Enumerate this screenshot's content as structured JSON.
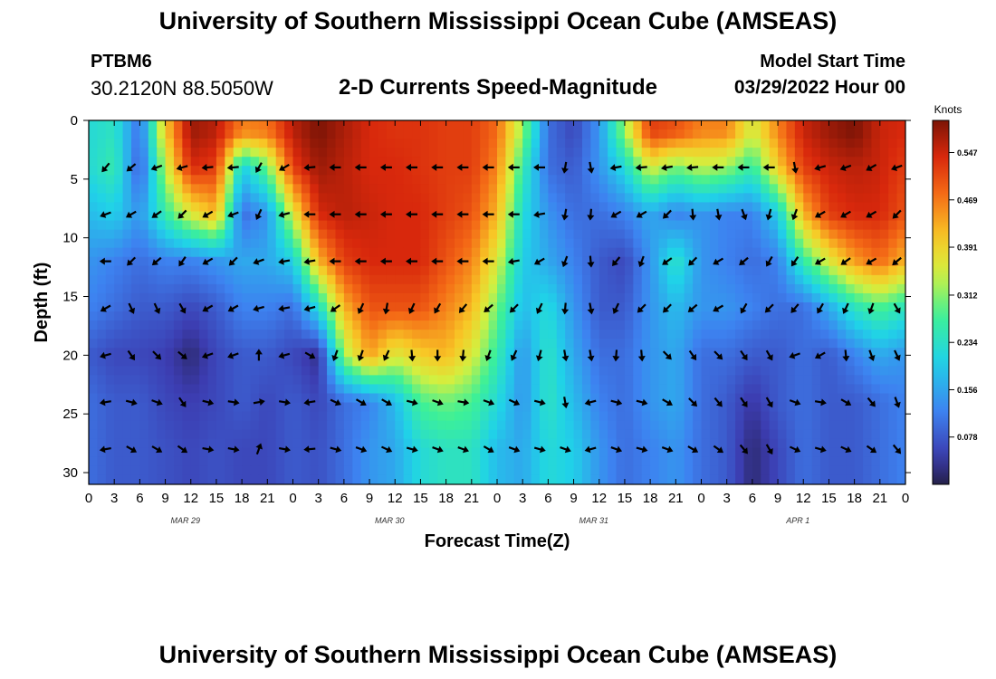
{
  "page": {
    "title_top": "University of Southern Mississippi Ocean Cube (AMSEAS)",
    "title_bottom": "University of Southern Mississippi Ocean Cube (AMSEAS)",
    "station_id": "PTBM6",
    "station_coords": "30.2120N  88.5050W",
    "model_start_label": "Model Start Time",
    "model_start_value": "03/29/2022 Hour 00"
  },
  "chart_data": {
    "type": "heatmap",
    "title": "2-D Currents Speed-Magnitude",
    "xlabel": "Forecast Time(Z)",
    "ylabel": "Depth (ft)",
    "x_range_hours": [
      0,
      96
    ],
    "y_range_ft": [
      0,
      31
    ],
    "x_ticks": [
      {
        "hour": 0,
        "label": "0"
      },
      {
        "hour": 3,
        "label": "3"
      },
      {
        "hour": 6,
        "label": "6"
      },
      {
        "hour": 9,
        "label": "9"
      },
      {
        "hour": 12,
        "label": "12"
      },
      {
        "hour": 15,
        "label": "15"
      },
      {
        "hour": 18,
        "label": "18"
      },
      {
        "hour": 21,
        "label": "21"
      },
      {
        "hour": 24,
        "label": "0"
      },
      {
        "hour": 27,
        "label": "3"
      },
      {
        "hour": 30,
        "label": "6"
      },
      {
        "hour": 33,
        "label": "9"
      },
      {
        "hour": 36,
        "label": "12"
      },
      {
        "hour": 39,
        "label": "15"
      },
      {
        "hour": 42,
        "label": "18"
      },
      {
        "hour": 45,
        "label": "21"
      },
      {
        "hour": 48,
        "label": "0"
      },
      {
        "hour": 51,
        "label": "3"
      },
      {
        "hour": 54,
        "label": "6"
      },
      {
        "hour": 57,
        "label": "9"
      },
      {
        "hour": 60,
        "label": "12"
      },
      {
        "hour": 63,
        "label": "15"
      },
      {
        "hour": 66,
        "label": "18"
      },
      {
        "hour": 69,
        "label": "21"
      },
      {
        "hour": 72,
        "label": "0"
      },
      {
        "hour": 75,
        "label": "3"
      },
      {
        "hour": 78,
        "label": "6"
      },
      {
        "hour": 81,
        "label": "9"
      },
      {
        "hour": 84,
        "label": "12"
      },
      {
        "hour": 87,
        "label": "15"
      },
      {
        "hour": 90,
        "label": "18"
      },
      {
        "hour": 93,
        "label": "21"
      },
      {
        "hour": 96,
        "label": "0"
      }
    ],
    "y_ticks": [
      0,
      5,
      10,
      15,
      20,
      25,
      30
    ],
    "date_labels": [
      {
        "hour": 12,
        "label": "MAR 29"
      },
      {
        "hour": 36,
        "label": "MAR 30"
      },
      {
        "hour": 60,
        "label": "MAR 31"
      },
      {
        "hour": 84,
        "label": "APR 1"
      }
    ],
    "colorbar": {
      "title": "Knots",
      "min": 0.0,
      "max": 0.6,
      "ticks": [
        "0.078",
        "0.156",
        "0.234",
        "0.312",
        "0.391",
        "0.469",
        "0.547"
      ]
    },
    "arrow_depths_ft": [
      4,
      8,
      12,
      16,
      20,
      24,
      28
    ],
    "arrow_hours": [
      2,
      5,
      8,
      11,
      14,
      17,
      20,
      23,
      26,
      29,
      32,
      35,
      38,
      41,
      44,
      47,
      50,
      53,
      56,
      59,
      62,
      65,
      68,
      71,
      74,
      77,
      80,
      83,
      86,
      89,
      92,
      95
    ],
    "speed_samples_knots": {
      "depths_ft": [
        1,
        4,
        8,
        12,
        16,
        20,
        24,
        28
      ],
      "hours": [
        0,
        3,
        6,
        9,
        12,
        15,
        18,
        21,
        24,
        27,
        30,
        33,
        36,
        39,
        42,
        45,
        48,
        51,
        54,
        57,
        60,
        63,
        66,
        69,
        72,
        75,
        78,
        81,
        84,
        87,
        90,
        93,
        96
      ],
      "rows": [
        [
          0.22,
          0.24,
          0.1,
          0.4,
          0.58,
          0.56,
          0.46,
          0.47,
          0.56,
          0.6,
          0.57,
          0.54,
          0.53,
          0.53,
          0.52,
          0.52,
          0.48,
          0.32,
          0.1,
          0.06,
          0.14,
          0.32,
          0.52,
          0.5,
          0.46,
          0.46,
          0.35,
          0.46,
          0.55,
          0.58,
          0.6,
          0.55,
          0.54
        ],
        [
          0.22,
          0.26,
          0.08,
          0.34,
          0.54,
          0.52,
          0.2,
          0.3,
          0.52,
          0.58,
          0.56,
          0.54,
          0.54,
          0.53,
          0.52,
          0.52,
          0.46,
          0.26,
          0.1,
          0.08,
          0.14,
          0.22,
          0.36,
          0.3,
          0.34,
          0.32,
          0.26,
          0.4,
          0.52,
          0.55,
          0.56,
          0.55,
          0.52
        ],
        [
          0.18,
          0.2,
          0.14,
          0.26,
          0.36,
          0.42,
          0.1,
          0.14,
          0.36,
          0.54,
          0.56,
          0.55,
          0.54,
          0.54,
          0.52,
          0.5,
          0.42,
          0.22,
          0.14,
          0.1,
          0.1,
          0.12,
          0.16,
          0.12,
          0.14,
          0.12,
          0.12,
          0.2,
          0.42,
          0.52,
          0.54,
          0.54,
          0.5
        ],
        [
          0.14,
          0.12,
          0.1,
          0.12,
          0.12,
          0.14,
          0.16,
          0.16,
          0.2,
          0.42,
          0.52,
          0.54,
          0.54,
          0.54,
          0.5,
          0.46,
          0.36,
          0.2,
          0.16,
          0.12,
          0.08,
          0.06,
          0.14,
          0.24,
          0.14,
          0.12,
          0.1,
          0.12,
          0.26,
          0.36,
          0.44,
          0.48,
          0.42
        ],
        [
          0.12,
          0.1,
          0.08,
          0.08,
          0.06,
          0.08,
          0.12,
          0.12,
          0.1,
          0.22,
          0.42,
          0.5,
          0.5,
          0.5,
          0.46,
          0.42,
          0.3,
          0.18,
          0.22,
          0.14,
          0.08,
          0.08,
          0.14,
          0.18,
          0.14,
          0.14,
          0.12,
          0.1,
          0.1,
          0.16,
          0.24,
          0.28,
          0.24
        ],
        [
          0.08,
          0.06,
          0.06,
          0.05,
          0.02,
          0.06,
          0.08,
          0.08,
          0.06,
          0.03,
          0.32,
          0.44,
          0.36,
          0.4,
          0.42,
          0.36,
          0.26,
          0.14,
          0.24,
          0.16,
          0.1,
          0.1,
          0.14,
          0.16,
          0.1,
          0.1,
          0.08,
          0.08,
          0.1,
          0.08,
          0.12,
          0.16,
          0.14
        ],
        [
          0.1,
          0.08,
          0.08,
          0.06,
          0.05,
          0.06,
          0.08,
          0.06,
          0.08,
          0.06,
          0.1,
          0.12,
          0.18,
          0.28,
          0.3,
          0.28,
          0.22,
          0.14,
          0.24,
          0.18,
          0.12,
          0.1,
          0.14,
          0.16,
          0.1,
          0.08,
          0.04,
          0.08,
          0.1,
          0.08,
          0.08,
          0.1,
          0.12
        ],
        [
          0.1,
          0.08,
          0.08,
          0.07,
          0.06,
          0.07,
          0.06,
          0.06,
          0.08,
          0.07,
          0.1,
          0.14,
          0.16,
          0.22,
          0.24,
          0.24,
          0.18,
          0.16,
          0.22,
          0.2,
          0.14,
          0.1,
          0.12,
          0.14,
          0.1,
          0.08,
          0.02,
          0.06,
          0.1,
          0.08,
          0.08,
          0.1,
          0.12
        ]
      ]
    },
    "arrow_angles_deg": [
      [
        130,
        140,
        160,
        165,
        175,
        175,
        120,
        150,
        175,
        180,
        180,
        180,
        180,
        180,
        180,
        180,
        180,
        180,
        100,
        80,
        170,
        175,
        170,
        175,
        180,
        180,
        180,
        80,
        165,
        160,
        150,
        160
      ],
      [
        160,
        150,
        145,
        135,
        150,
        160,
        115,
        165,
        180,
        180,
        180,
        180,
        180,
        180,
        180,
        180,
        180,
        170,
        100,
        95,
        150,
        150,
        135,
        85,
        80,
        70,
        105,
        110,
        150,
        150,
        150,
        135
      ],
      [
        180,
        135,
        140,
        125,
        150,
        135,
        160,
        170,
        170,
        180,
        180,
        180,
        180,
        180,
        180,
        180,
        170,
        150,
        110,
        85,
        130,
        110,
        145,
        135,
        150,
        140,
        120,
        125,
        150,
        145,
        150,
        140
      ],
      [
        150,
        65,
        65,
        60,
        150,
        150,
        165,
        170,
        165,
        145,
        115,
        100,
        115,
        120,
        130,
        140,
        135,
        115,
        95,
        80,
        115,
        135,
        135,
        140,
        150,
        120,
        135,
        130,
        120,
        115,
        110,
        60
      ],
      [
        165,
        55,
        45,
        40,
        160,
        160,
        270,
        165,
        30,
        110,
        110,
        115,
        85,
        90,
        95,
        110,
        115,
        105,
        80,
        80,
        95,
        85,
        45,
        55,
        45,
        55,
        60,
        160,
        150,
        85,
        70,
        65
      ],
      [
        170,
        15,
        20,
        55,
        15,
        10,
        350,
        10,
        170,
        25,
        30,
        30,
        15,
        20,
        10,
        20,
        25,
        15,
        80,
        165,
        15,
        15,
        30,
        45,
        50,
        55,
        60,
        20,
        10,
        30,
        50,
        70
      ],
      [
        170,
        30,
        30,
        35,
        10,
        10,
        290,
        10,
        175,
        15,
        20,
        25,
        15,
        20,
        20,
        30,
        20,
        15,
        20,
        165,
        20,
        15,
        20,
        30,
        35,
        50,
        60,
        25,
        15,
        25,
        35,
        50
      ]
    ]
  }
}
